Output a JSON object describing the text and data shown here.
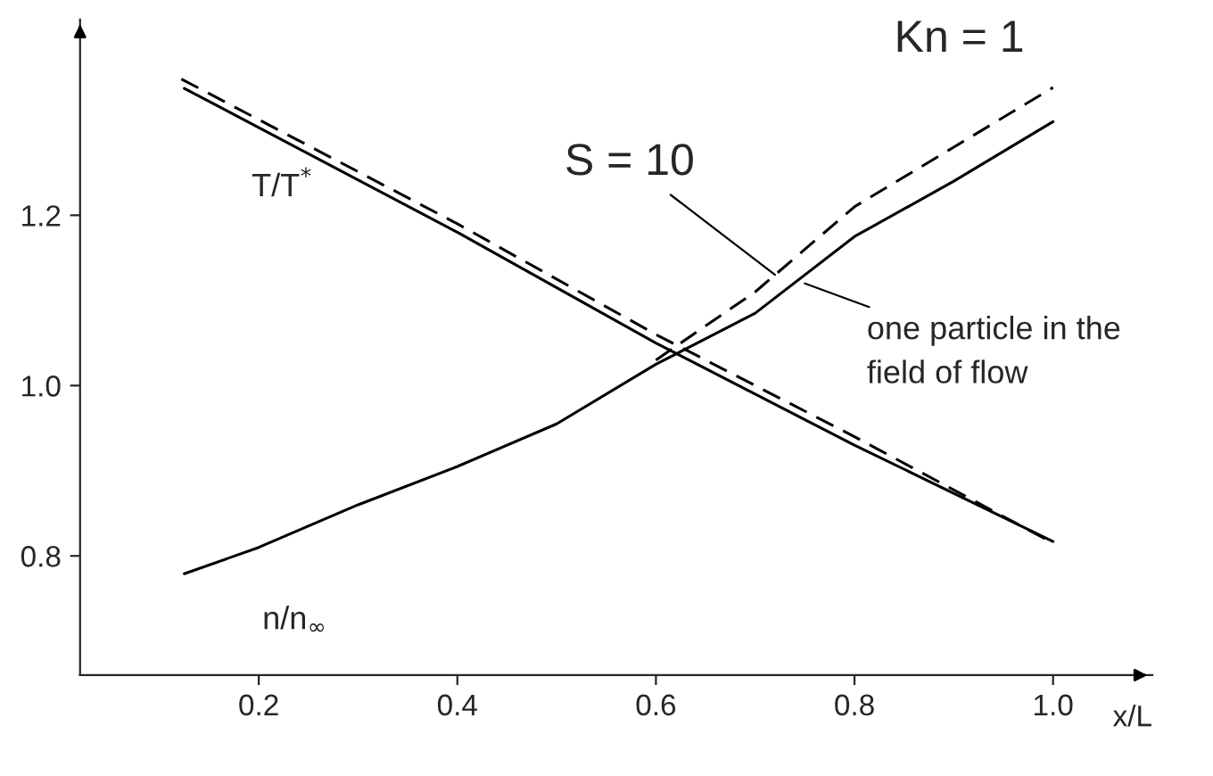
{
  "chart_data": {
    "type": "line",
    "title": "Kn = 1",
    "xlabel": "x/L",
    "xlim": [
      0.02,
      1.1
    ],
    "ylim": [
      0.66,
      1.43
    ],
    "xticks": [
      0.2,
      0.4,
      0.6,
      0.8,
      {
        "value": 1.0,
        "label": "1.0"
      }
    ],
    "yticks": [
      0.8,
      {
        "value": 1.0,
        "label": "1.0"
      },
      1.2
    ],
    "grid": false,
    "marker": "none",
    "series": [
      {
        "color": "#000000",
        "line_style": "solid",
        "x": [
          0.125,
          0.4,
          0.6,
          0.8,
          1.0
        ],
        "values": [
          1.349,
          1.18,
          1.05,
          0.93,
          0.817
        ]
      },
      {
        "color": "#000000",
        "line_style": "dashed",
        "x": [
          0.122,
          0.4,
          0.6,
          0.8,
          1.0
        ],
        "values": [
          1.36,
          1.19,
          1.06,
          0.94,
          0.815
        ]
      },
      {
        "color": "#000000",
        "line_style": "solid",
        "x": [
          0.125,
          0.2,
          0.3,
          0.4,
          0.5,
          0.6,
          0.7,
          0.8,
          0.9,
          1.0
        ],
        "values": [
          0.779,
          0.81,
          0.86,
          0.905,
          0.955,
          1.025,
          1.085,
          1.175,
          1.24,
          1.31
        ]
      },
      {
        "color": "#000000",
        "line_style": "dashed",
        "x": [
          0.6,
          0.7,
          0.8,
          0.9,
          1.0
        ],
        "values": [
          1.03,
          1.11,
          1.21,
          1.28,
          1.35
        ]
      }
    ],
    "annotations": [
      "T/T$^{*}$",
      "n/n$_{∞}$",
      {
        "text": "S = 10",
        "x": 0.72,
        "y": 1.13
      },
      {
        "text": "one particle in the\nfield of flow",
        "x": 0.75,
        "y": 1.12
      }
    ]
  }
}
